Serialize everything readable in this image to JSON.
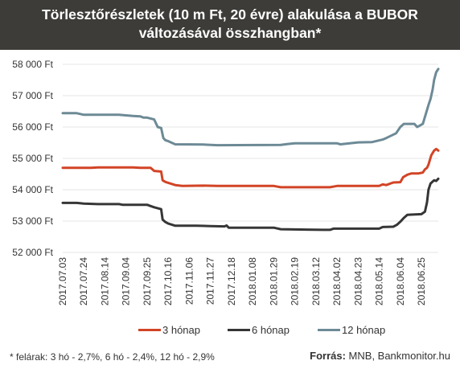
{
  "header": {
    "title_line1": "Törlesztőrészletek (10 m Ft, 20 évre) alakulása a BUBOR",
    "title_line2": "változásával összhangban*"
  },
  "footer": {
    "footnote": "* felárak: 3 hó - 2,7%, 6 hó - 2,4%, 12 hó - 2,9%",
    "source_label": "Forrás:",
    "source_text": " MNB, Bankmonitor.hu"
  },
  "colors": {
    "s3": "#d24426",
    "s6": "#363636",
    "s12": "#6d8a96",
    "grid": "#e4e4e4"
  },
  "chart_data": {
    "type": "line",
    "title": "Törlesztőrészletek (10 m Ft, 20 évre) alakulása a BUBOR változásával összhangban*",
    "xlabel": "",
    "ylabel": "",
    "ylim": [
      52000,
      58000
    ],
    "y_ticks": [
      52000,
      53000,
      54000,
      55000,
      56000,
      57000,
      58000
    ],
    "y_tick_labels": [
      "52 000 Ft",
      "53 000 Ft",
      "54 000 Ft",
      "55 000 Ft",
      "56 000 Ft",
      "57 000 Ft",
      "58 000 Ft"
    ],
    "x_tick_labels": [
      "2017.07.03",
      "2017.07.24",
      "2017.08.14",
      "2017.09.04",
      "2017.09.25",
      "2017.10.16",
      "2017.11.06",
      "2017.11.27",
      "2017.12.18",
      "2018.01.08",
      "2018.01.29",
      "2018.02.19",
      "2018.03.12",
      "2018.04.02",
      "2018.04.23",
      "2018.05.14",
      "2018.06.04",
      "2018.06.25"
    ],
    "x_range_weeks": [
      0,
      53.4
    ],
    "grid": "horizontal",
    "legend_position": "bottom",
    "series": [
      {
        "name": "3 hónap",
        "color_key": "s3",
        "points": [
          [
            0,
            54700
          ],
          [
            4,
            54700
          ],
          [
            5,
            54710
          ],
          [
            10,
            54710
          ],
          [
            11,
            54700
          ],
          [
            12.5,
            54700
          ],
          [
            13,
            54600
          ],
          [
            14,
            54580
          ],
          [
            14.2,
            54300
          ],
          [
            14.6,
            54250
          ],
          [
            15,
            54220
          ],
          [
            16,
            54150
          ],
          [
            17,
            54120
          ],
          [
            20,
            54130
          ],
          [
            22,
            54120
          ],
          [
            30,
            54120
          ],
          [
            31,
            54080
          ],
          [
            38,
            54080
          ],
          [
            39,
            54120
          ],
          [
            45,
            54120
          ],
          [
            45.5,
            54170
          ],
          [
            46,
            54150
          ],
          [
            47,
            54230
          ],
          [
            48,
            54240
          ],
          [
            48.4,
            54400
          ],
          [
            49,
            54480
          ],
          [
            49.6,
            54520
          ],
          [
            50.6,
            54520
          ],
          [
            51.2,
            54550
          ],
          [
            51.5,
            54650
          ],
          [
            51.8,
            54700
          ],
          [
            52,
            54800
          ],
          [
            52.4,
            55100
          ],
          [
            52.8,
            55250
          ],
          [
            53.1,
            55300
          ],
          [
            53.4,
            55250
          ]
        ]
      },
      {
        "name": "6 hónap",
        "color_key": "s6",
        "points": [
          [
            0,
            53580
          ],
          [
            2,
            53580
          ],
          [
            3,
            53560
          ],
          [
            5,
            53540
          ],
          [
            8,
            53540
          ],
          [
            8.5,
            53520
          ],
          [
            12,
            53520
          ],
          [
            12.5,
            53480
          ],
          [
            13,
            53440
          ],
          [
            14,
            53380
          ],
          [
            14.2,
            53050
          ],
          [
            14.6,
            52970
          ],
          [
            15,
            52920
          ],
          [
            16,
            52850
          ],
          [
            19,
            52850
          ],
          [
            21,
            52840
          ],
          [
            23,
            52830
          ],
          [
            23.3,
            52860
          ],
          [
            23.6,
            52790
          ],
          [
            30,
            52790
          ],
          [
            31,
            52740
          ],
          [
            37,
            52720
          ],
          [
            38,
            52720
          ],
          [
            38.5,
            52760
          ],
          [
            45,
            52760
          ],
          [
            45.5,
            52810
          ],
          [
            47,
            52820
          ],
          [
            47.5,
            52880
          ],
          [
            48,
            52980
          ],
          [
            48.5,
            53100
          ],
          [
            49,
            53200
          ],
          [
            51,
            53220
          ],
          [
            51.5,
            53300
          ],
          [
            51.8,
            53600
          ],
          [
            52,
            54000
          ],
          [
            52.3,
            54200
          ],
          [
            52.8,
            54300
          ],
          [
            53.1,
            54280
          ],
          [
            53.4,
            54350
          ]
        ]
      },
      {
        "name": "12 hónap",
        "color_key": "s12",
        "points": [
          [
            0,
            56440
          ],
          [
            2,
            56440
          ],
          [
            3,
            56390
          ],
          [
            8,
            56390
          ],
          [
            10,
            56350
          ],
          [
            11,
            56340
          ],
          [
            11.5,
            56300
          ],
          [
            12,
            56300
          ],
          [
            13,
            56240
          ],
          [
            13.5,
            56000
          ],
          [
            14,
            55970
          ],
          [
            14.3,
            55650
          ],
          [
            14.6,
            55580
          ],
          [
            15,
            55550
          ],
          [
            16,
            55450
          ],
          [
            20,
            55440
          ],
          [
            22,
            55420
          ],
          [
            31,
            55430
          ],
          [
            32,
            55460
          ],
          [
            33,
            55480
          ],
          [
            39,
            55480
          ],
          [
            39.5,
            55450
          ],
          [
            42,
            55510
          ],
          [
            44,
            55520
          ],
          [
            45.5,
            55600
          ],
          [
            46,
            55650
          ],
          [
            47.4,
            55800
          ],
          [
            48,
            56000
          ],
          [
            48.5,
            56100
          ],
          [
            50,
            56100
          ],
          [
            50.4,
            56000
          ],
          [
            51.2,
            56100
          ],
          [
            51.6,
            56400
          ],
          [
            52,
            56700
          ],
          [
            52.3,
            56900
          ],
          [
            52.6,
            57200
          ],
          [
            52.8,
            57500
          ],
          [
            53.1,
            57750
          ],
          [
            53.4,
            57850
          ]
        ]
      }
    ]
  }
}
